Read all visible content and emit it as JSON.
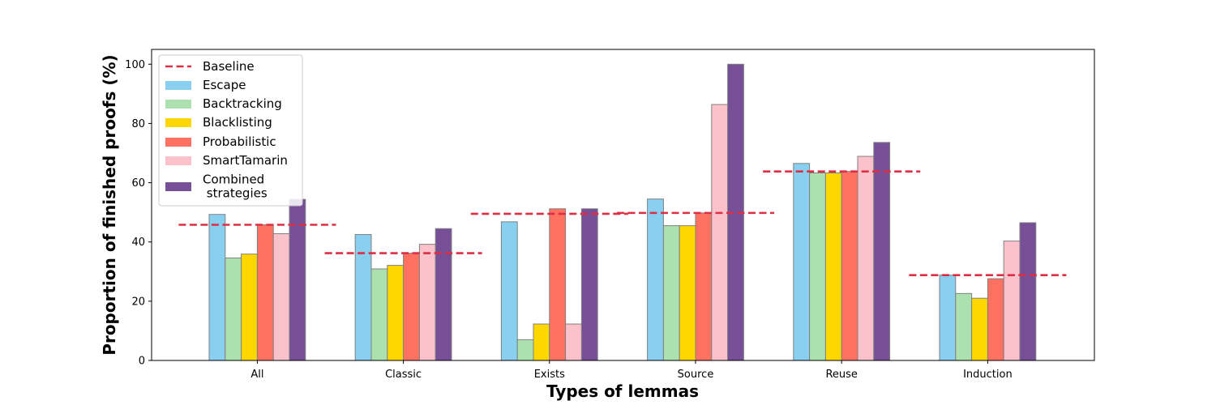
{
  "chart_data": {
    "type": "bar",
    "title": "",
    "xlabel": "Types of lemmas",
    "ylabel": "Proportion of finished proofs (%)",
    "ylim": [
      0,
      105
    ],
    "yticks": [
      0,
      20,
      40,
      60,
      80,
      100
    ],
    "grid": false,
    "legend_position": "top-left",
    "categories": [
      "All",
      "Classic",
      "Exists",
      "Source",
      "Reuse",
      "Induction"
    ],
    "baseline": {
      "name": "Baseline",
      "style": "dashed",
      "color": "#dc2f44",
      "values": [
        45.8,
        36.2,
        49.5,
        49.8,
        63.8,
        28.8
      ]
    },
    "series": [
      {
        "name": "Escape",
        "color": "#89cff0",
        "values": [
          49.3,
          42.5,
          46.8,
          54.5,
          66.5,
          28.8
        ]
      },
      {
        "name": "Backtracking",
        "color": "#ace1af",
        "values": [
          34.6,
          30.9,
          7.0,
          45.5,
          63.3,
          22.6
        ]
      },
      {
        "name": "Blacklisting",
        "color": "#ffd700",
        "values": [
          35.9,
          32.1,
          12.3,
          45.5,
          63.3,
          21.0
        ]
      },
      {
        "name": "Probabilistic",
        "color": "#ff7261",
        "values": [
          45.8,
          36.2,
          51.2,
          49.8,
          63.8,
          27.6
        ]
      },
      {
        "name": "SmartTamarin",
        "color": "#fbc2cc",
        "values": [
          42.8,
          39.2,
          12.3,
          86.4,
          68.9,
          40.3
        ]
      },
      {
        "name": "Combined\n strategies",
        "color": "#764f97",
        "values": [
          54.4,
          44.5,
          51.2,
          100.0,
          73.6,
          46.5
        ]
      }
    ]
  }
}
